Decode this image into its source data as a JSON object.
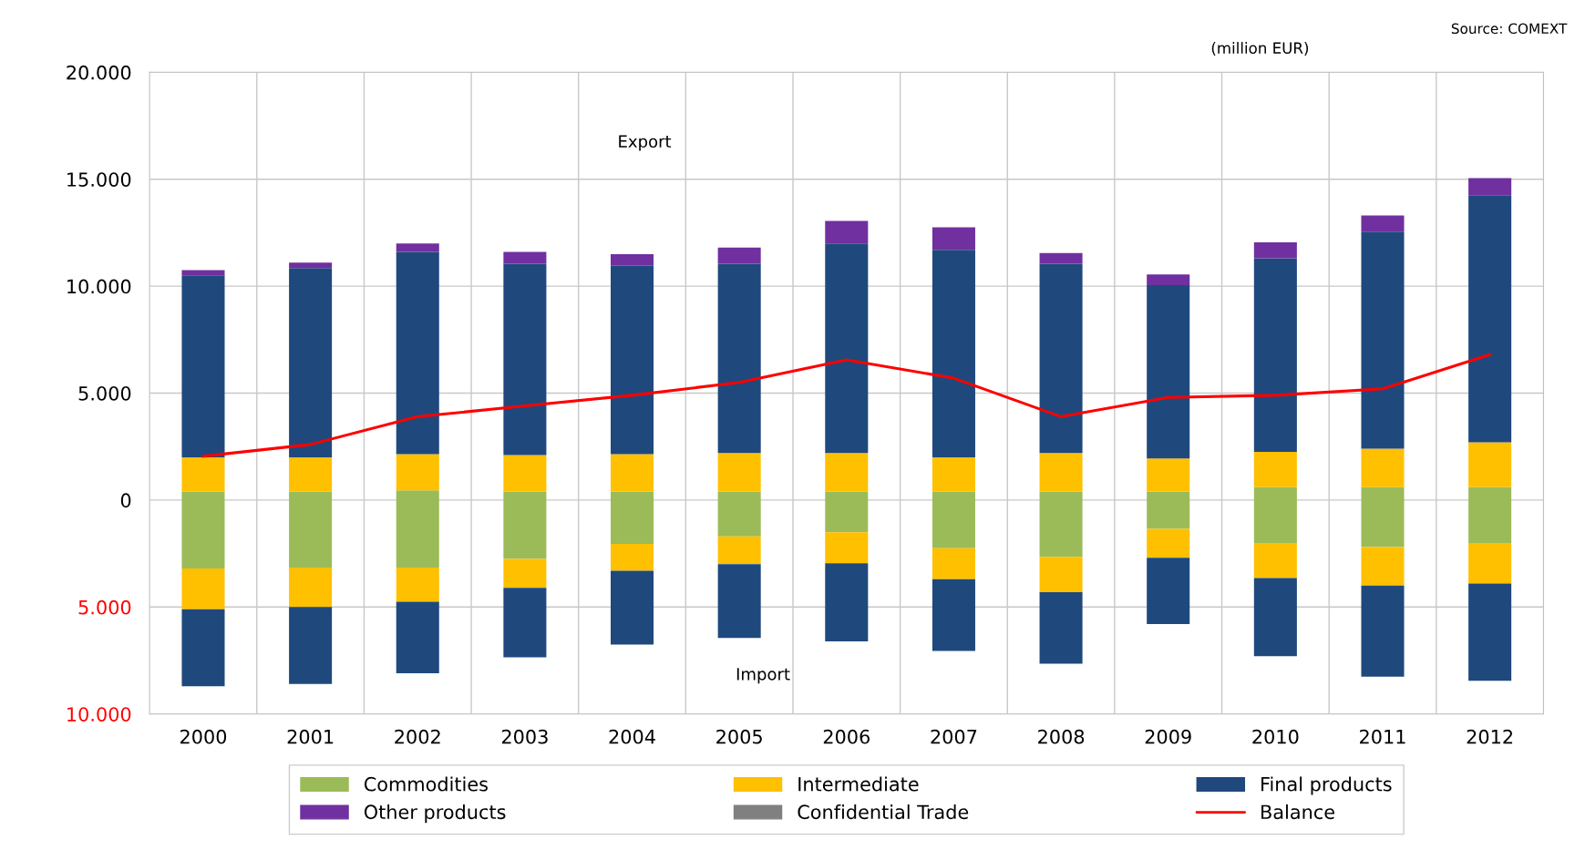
{
  "chart_data": {
    "type": "bar",
    "stacked": true,
    "categories": [
      "2000",
      "2001",
      "2002",
      "2003",
      "2004",
      "2005",
      "2006",
      "2007",
      "2008",
      "2009",
      "2010",
      "2011",
      "2012"
    ],
    "ylim": [
      -10000,
      20000
    ],
    "yticks": [
      {
        "value": -10000,
        "label": "10.000"
      },
      {
        "value": -5000,
        "label": "5.000"
      },
      0,
      {
        "value": 5000,
        "label": "5.000"
      },
      {
        "value": 10000,
        "label": "10.000"
      },
      {
        "value": 15000,
        "label": "15.000"
      },
      {
        "value": 20000,
        "label": "20.000"
      }
    ],
    "grid": true,
    "legend": "bottom",
    "annotations": [
      "Source: COMEXT",
      "(million EUR)",
      "Export",
      "Import"
    ],
    "series": [
      {
        "name": "Commodities",
        "color": "#9bbb59",
        "values": [
          400,
          400,
          450,
          400,
          400,
          400,
          400,
          400,
          400,
          400,
          600,
          600,
          600
        ]
      },
      {
        "name": "Intermediate",
        "color": "#ffc000",
        "values": [
          1600,
          1600,
          1700,
          1700,
          1750,
          1800,
          1800,
          1600,
          1800,
          1550,
          1650,
          1800,
          2100
        ]
      },
      {
        "name": "Final products",
        "color": "#1f497d",
        "values": [
          8500,
          8850,
          9450,
          8950,
          8800,
          8850,
          9800,
          9700,
          8850,
          8100,
          9050,
          10150,
          11550
        ]
      },
      {
        "name": "Other products",
        "color": "#7030a0",
        "values": [
          250,
          250,
          400,
          550,
          550,
          750,
          1050,
          1050,
          500,
          500,
          750,
          750,
          800
        ]
      },
      {
        "name": "Confidential Trade",
        "color": "#808080",
        "values": [
          null,
          null,
          null,
          null,
          null,
          null,
          null,
          null,
          null,
          null,
          null,
          null,
          null
        ]
      },
      {
        "color": "#9bbb59",
        "values": [
          -3200,
          -3150,
          -3150,
          -2750,
          -2050,
          -1700,
          -1500,
          -2250,
          -2650,
          -1350,
          -2000,
          -2200,
          -2000
        ]
      },
      {
        "color": "#ffc000",
        "values": [
          -1900,
          -1850,
          -1600,
          -1350,
          -1250,
          -1300,
          -1450,
          -1450,
          -1650,
          -1350,
          -1650,
          -1800,
          -1900
        ]
      },
      {
        "color": "#1f497d",
        "values": [
          -3600,
          -3600,
          -3350,
          -3250,
          -3450,
          -3450,
          -3650,
          -3350,
          -3350,
          -3100,
          -3650,
          -4250,
          -4550
        ]
      },
      {
        "name": "Balance",
        "type": "line",
        "color": "#ff0000",
        "values": [
          2050,
          2600,
          3900,
          4400,
          4900,
          5500,
          6550,
          5700,
          3900,
          4800,
          4900,
          5200,
          6800
        ]
      }
    ]
  }
}
